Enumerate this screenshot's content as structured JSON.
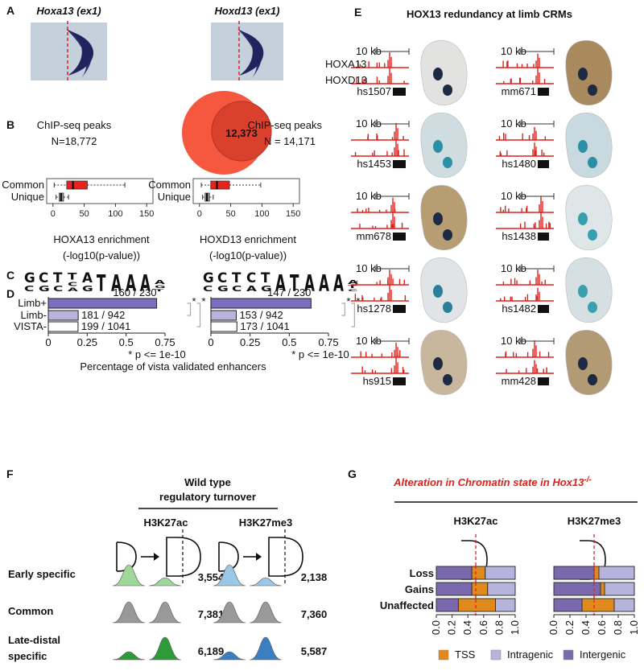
{
  "panel_labels": [
    "A",
    "B",
    "C",
    "D",
    "E",
    "F",
    "G"
  ],
  "A": {
    "titles": [
      "Hoxa13 (ex1)",
      "Hoxd13 (ex1)"
    ]
  },
  "B": {
    "left": [
      "ChIP-seq peaks",
      "N=18,772"
    ],
    "right": [
      "ChIP-seq peaks",
      "N = 14,171"
    ],
    "overlap": "12,373"
  },
  "C": {
    "logos": [
      [
        [
          "G",
          "C"
        ],
        [
          "C",
          "G"
        ],
        [
          "T",
          "C"
        ],
        [
          "T",
          "C",
          "A"
        ],
        [
          "A",
          "G"
        ],
        [
          "T"
        ],
        [
          "A"
        ],
        [
          "A"
        ],
        [
          "A"
        ],
        [
          "A",
          "G",
          "T"
        ]
      ],
      [
        [
          "G",
          "C"
        ],
        [
          "C",
          "G"
        ],
        [
          "T",
          "C"
        ],
        [
          "C",
          "A"
        ],
        [
          "T",
          "G"
        ],
        [
          "A"
        ],
        [
          "T"
        ],
        [
          "A"
        ],
        [
          "A"
        ],
        [
          "A"
        ],
        [
          "A",
          "T",
          "C"
        ]
      ]
    ]
  },
  "D": {
    "xlabel": "Percentage of vista validated enhancers"
  },
  "E": {
    "title": "HOX13 redundancy at limb CRMs",
    "track_names": [
      "HOXA13",
      "HOXD13"
    ],
    "scale": "10 kb",
    "elements": [
      "hs1507",
      "mm671",
      "hs1453",
      "hs1480",
      "mm678",
      "hs1438",
      "hs1278",
      "hs1482",
      "hs915",
      "mm428"
    ]
  },
  "F": {
    "title": [
      "Wild type",
      "regulatory turnover"
    ],
    "marks": [
      "H3K27ac",
      "H3K27me3"
    ],
    "rows": [
      {
        "label": [
          "Early specific"
        ],
        "counts": [
          "3,554",
          "2,138"
        ]
      },
      {
        "label": [
          "Common"
        ],
        "counts": [
          "7,381",
          "7,360"
        ]
      },
      {
        "label": [
          "Late-distal",
          "specific"
        ],
        "counts": [
          "6,189",
          "5,587"
        ]
      }
    ]
  },
  "G": {
    "title": [
      "Alteration in Chromatin state in ",
      "Hox13",
      "-/-"
    ]
  },
  "chart_data": [
    {
      "type": "box",
      "categories": [
        "Common",
        "Unique"
      ],
      "colors": [
        "#e8231d",
        "#9a9a9a"
      ],
      "whisker_low": [
        2,
        5
      ],
      "q1": [
        22,
        10
      ],
      "median": [
        32,
        13
      ],
      "q3": [
        55,
        17
      ],
      "whisker_high": [
        115,
        25
      ],
      "xlim": [
        -10,
        160
      ],
      "xticks": [
        0,
        50,
        100,
        150
      ],
      "xlabel": [
        "HOXA13 enrichment",
        "(-log10(p-value))"
      ]
    },
    {
      "type": "box",
      "categories": [
        "Common",
        "Unique"
      ],
      "colors": [
        "#e8231d",
        "#9a9a9a"
      ],
      "whisker_low": [
        3,
        5
      ],
      "q1": [
        18,
        9
      ],
      "median": [
        28,
        12
      ],
      "q3": [
        48,
        16
      ],
      "whisker_high": [
        98,
        22
      ],
      "xlim": [
        -10,
        160
      ],
      "xticks": [
        0,
        50,
        100,
        150
      ],
      "xlabel": [
        "HOXD13 enrichment",
        "(-log10(p-value))"
      ]
    },
    {
      "type": "bar",
      "categories": [
        "Limb+",
        "Limb-",
        "VISTA-"
      ],
      "colors": [
        "#7b70c0",
        "#b9b4de",
        "#ffffff"
      ],
      "values": [
        0.696,
        0.192,
        0.191
      ],
      "value_labels": [
        "160 / 230",
        "181 / 942",
        "199 / 1041"
      ],
      "xlim": [
        0,
        0.75
      ],
      "xticks": [
        0,
        0.25,
        0.5,
        0.75
      ],
      "significance": "*",
      "annotation": "* p <= 1e-10"
    },
    {
      "type": "bar",
      "categories": [
        null,
        null,
        null
      ],
      "colors": [
        "#7b70c0",
        "#b9b4de",
        "#ffffff"
      ],
      "values": [
        0.639,
        0.162,
        0.166
      ],
      "value_labels": [
        "147 / 230",
        "153 / 942",
        "173 / 1041"
      ],
      "xlim": [
        0,
        0.75
      ],
      "xticks": [
        0,
        0.25,
        0.5,
        0.75
      ],
      "significance": "*",
      "annotation": "* p <= 1e-10"
    },
    {
      "type": "stacked-bar",
      "title": "H3K27ac",
      "categories": [
        "Loss",
        "Gains",
        "Unaffected"
      ],
      "series": [
        {
          "name": "Intergenic",
          "color": "#7a6aad",
          "values": [
            0.45,
            0.45,
            0.28
          ]
        },
        {
          "name": "TSS",
          "color": "#e08a1e",
          "values": [
            0.17,
            0.2,
            0.47
          ]
        },
        {
          "name": "Intragenic",
          "color": "#b6b3dc",
          "values": [
            0.38,
            0.35,
            0.25
          ]
        }
      ],
      "xlim": [
        0,
        1
      ],
      "xticks": [
        {
          "value": 0,
          "label": "0.0"
        },
        0.2,
        0.4,
        0.6,
        0.8,
        {
          "value": 1,
          "label": "1.0"
        }
      ]
    },
    {
      "type": "stacked-bar",
      "title": "H3K27me3",
      "categories": [
        null,
        null,
        null
      ],
      "series": [
        {
          "color": "#7a6aad",
          "values": [
            0.5,
            0.58,
            0.35
          ]
        },
        {
          "color": "#e08a1e",
          "values": [
            0.06,
            0.05,
            0.4
          ]
        },
        {
          "color": "#b6b3dc",
          "values": [
            0.44,
            0.37,
            0.25
          ]
        }
      ],
      "xlim": [
        0,
        1
      ],
      "xticks": [
        {
          "value": 0,
          "label": "0.0"
        },
        0.2,
        0.4,
        0.6,
        0.8,
        {
          "value": 1,
          "label": "1.0"
        }
      ]
    }
  ]
}
